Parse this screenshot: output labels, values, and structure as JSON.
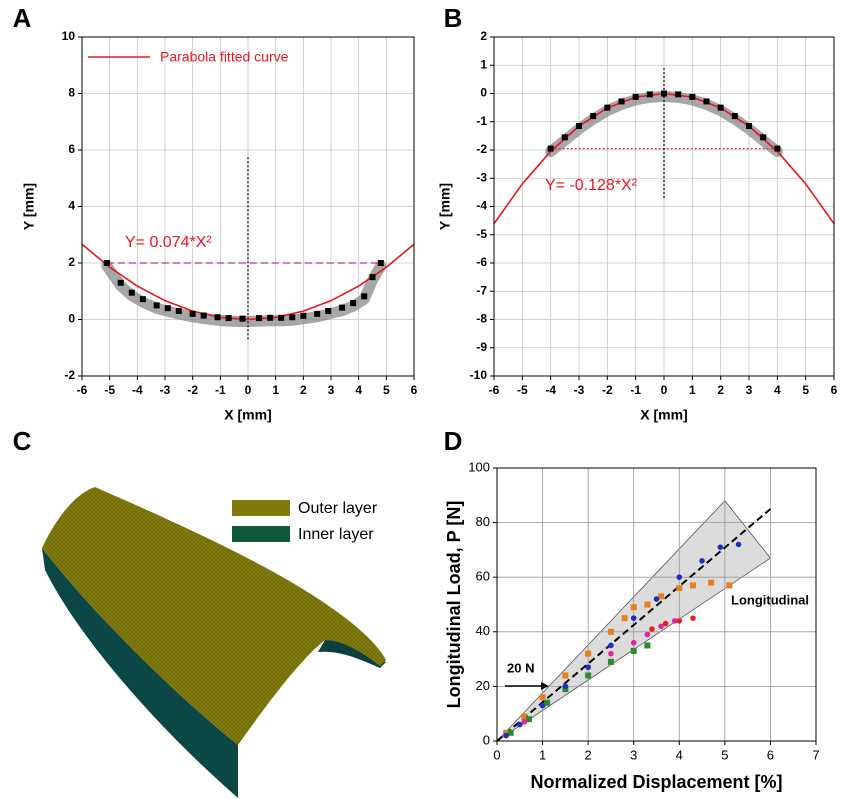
{
  "chart_data": [
    {
      "panel": "A",
      "type": "scatter",
      "xlabel": "X [mm]",
      "ylabel": "Y [mm]",
      "xlim": [
        -6,
        6
      ],
      "ylim": [
        -2,
        10
      ],
      "xticks": [
        -6,
        -5,
        -4,
        -3,
        -2,
        -1,
        0,
        1,
        2,
        3,
        4,
        5,
        6
      ],
      "yticks": [
        -2,
        0,
        2,
        4,
        6,
        8,
        10
      ],
      "grid": true,
      "grid_style": "solid",
      "legend_loc": "upper left",
      "series": [
        {
          "name": "Parabola fitted curve",
          "color": "#e8161b",
          "line": true,
          "x": [
            -6,
            -5,
            -4,
            -3,
            -2,
            -1,
            0,
            1,
            2,
            3,
            4,
            5,
            6
          ],
          "values": [
            2.664,
            1.85,
            1.184,
            0.666,
            0.296,
            0.074,
            0,
            0.074,
            0.296,
            0.666,
            1.184,
            1.85,
            2.664
          ]
        },
        {
          "color": "#000000",
          "marker": "square",
          "x": [
            -5.1,
            -4.6,
            -4.2,
            -3.8,
            -3.3,
            -2.9,
            -2.5,
            -2.0,
            -1.6,
            -1.1,
            -0.7,
            -0.2,
            0.4,
            0.8,
            1.2,
            1.6,
            2.0,
            2.5,
            2.9,
            3.4,
            3.8,
            4.2,
            4.5,
            4.8
          ],
          "values": [
            2.0,
            1.3,
            0.95,
            0.72,
            0.5,
            0.4,
            0.3,
            0.2,
            0.14,
            0.08,
            0.05,
            0.03,
            0.05,
            0.06,
            0.06,
            0.08,
            0.13,
            0.2,
            0.3,
            0.42,
            0.58,
            0.82,
            1.5,
            2.0
          ]
        }
      ],
      "ref_lines": [
        {
          "color": "#c0308f",
          "dash": "dash",
          "x": [
            -5.1,
            4.8
          ],
          "y": [
            2,
            2
          ]
        },
        {
          "color": "#000000",
          "dash": "dot",
          "x": [
            0,
            0
          ],
          "y": [
            -0.7,
            5.8
          ]
        }
      ],
      "annotations": [
        {
          "text": "Y= 0.074*X²",
          "color": "#e8161b"
        }
      ]
    },
    {
      "panel": "B",
      "type": "scatter",
      "xlabel": "X [mm]",
      "ylabel": "Y [mm]",
      "xlim": [
        -6,
        6
      ],
      "ylim": [
        -10,
        2
      ],
      "xticks": [
        -6,
        -5,
        -4,
        -3,
        -2,
        -1,
        0,
        1,
        2,
        3,
        4,
        5,
        6
      ],
      "yticks": [
        -10,
        -9,
        -8,
        -7,
        -6,
        -5,
        -4,
        -3,
        -2,
        -1,
        0,
        1,
        2
      ],
      "grid": true,
      "grid_style": "solid",
      "series": [
        {
          "color": "#e8161b",
          "line": true,
          "x": [
            -6,
            -5,
            -4,
            -3,
            -2,
            -1,
            0,
            1,
            2,
            3,
            4,
            5,
            6
          ],
          "values": [
            -4.608,
            -3.2,
            -2.048,
            -1.152,
            -0.512,
            -0.128,
            0,
            -0.128,
            -0.512,
            -1.152,
            -2.048,
            -3.2,
            -4.608
          ]
        },
        {
          "color": "#000000",
          "marker": "square",
          "x": [
            -4,
            -3.5,
            -3,
            -2.5,
            -2,
            -1.5,
            -1,
            -0.5,
            0,
            0.5,
            1,
            1.5,
            2,
            2.5,
            3,
            3.5,
            4
          ],
          "values": [
            -1.95,
            -1.55,
            -1.15,
            -0.8,
            -0.5,
            -0.28,
            -0.12,
            -0.03,
            0,
            -0.03,
            -0.12,
            -0.28,
            -0.5,
            -0.8,
            -1.15,
            -1.55,
            -1.95
          ]
        }
      ],
      "ref_lines": [
        {
          "color": "#c0308f",
          "dash": "dot",
          "x": [
            -4,
            4
          ],
          "y": [
            -1.95,
            -1.95
          ]
        },
        {
          "color": "#000000",
          "dash": "dot",
          "x": [
            0,
            0
          ],
          "y": [
            -3.7,
            0.9
          ]
        }
      ],
      "annotations": [
        {
          "text": "Y= -0.128*X²",
          "color": "#e8161b"
        }
      ]
    },
    {
      "panel": "C",
      "type": "illustration",
      "legend": [
        {
          "name": "Outer layer",
          "color": "#807a0c"
        },
        {
          "name": "Inner layer",
          "color": "#0f5a35"
        }
      ]
    },
    {
      "panel": "D",
      "type": "scatter",
      "xlabel": "Normalized Displacement [%]",
      "ylabel": "Longitudinal Load, P [N]",
      "xlim": [
        0,
        7
      ],
      "ylim": [
        0,
        100
      ],
      "xticks": [
        0,
        1,
        2,
        3,
        4,
        5,
        6,
        7
      ],
      "yticks": [
        0,
        20,
        40,
        60,
        80,
        100
      ],
      "grid": true,
      "grid_style": "dashed",
      "band": {
        "color": "#dcdcdc",
        "x": [
          0,
          5,
          6
        ],
        "y": [
          0,
          88,
          67
        ]
      },
      "ref_lines": [
        {
          "color": "#000000",
          "dash": "dash",
          "x": [
            0,
            6
          ],
          "y": [
            0,
            85
          ]
        }
      ],
      "series": [
        {
          "color": "#e87f1e",
          "marker": "square",
          "x": [
            0.2,
            0.6,
            1,
            1.5,
            2,
            2.5,
            2.8,
            3,
            3.3,
            3.6,
            4,
            4.3,
            4.7,
            5.1
          ],
          "values": [
            3,
            9,
            16,
            24,
            32,
            40,
            45,
            49,
            50,
            53,
            56,
            57,
            58,
            57
          ]
        },
        {
          "color": "#2a8a2a",
          "marker": "square",
          "x": [
            0.3,
            0.7,
            1.1,
            1.5,
            2,
            2.5,
            3,
            3.3
          ],
          "values": [
            3,
            8,
            14,
            19,
            24,
            29,
            33,
            35
          ]
        },
        {
          "color": "#e0249a",
          "marker": "circle",
          "x": [
            0.2,
            0.6,
            1,
            1.5,
            2,
            2.5,
            3,
            3.3,
            3.6,
            3.9
          ],
          "values": [
            2,
            7,
            13,
            20,
            27,
            32,
            36,
            39,
            42,
            44
          ]
        },
        {
          "color": "#e82020",
          "marker": "circle",
          "x": [
            3.4,
            3.7,
            4,
            4.3
          ],
          "values": [
            41,
            43,
            44,
            45
          ]
        },
        {
          "color": "#1f2fbf",
          "marker": "circle",
          "x": [
            0.2,
            0.5,
            1,
            1.5,
            2,
            2.5,
            3,
            3.5,
            4,
            4.5,
            4.9,
            5.3
          ],
          "values": [
            2,
            6,
            13,
            20,
            27,
            35,
            45,
            52,
            60,
            66,
            71,
            72
          ]
        }
      ],
      "annotations": [
        {
          "text": "Longitudinal",
          "color": "#000000"
        },
        {
          "text": "20 N",
          "color": "#000000"
        }
      ]
    }
  ]
}
